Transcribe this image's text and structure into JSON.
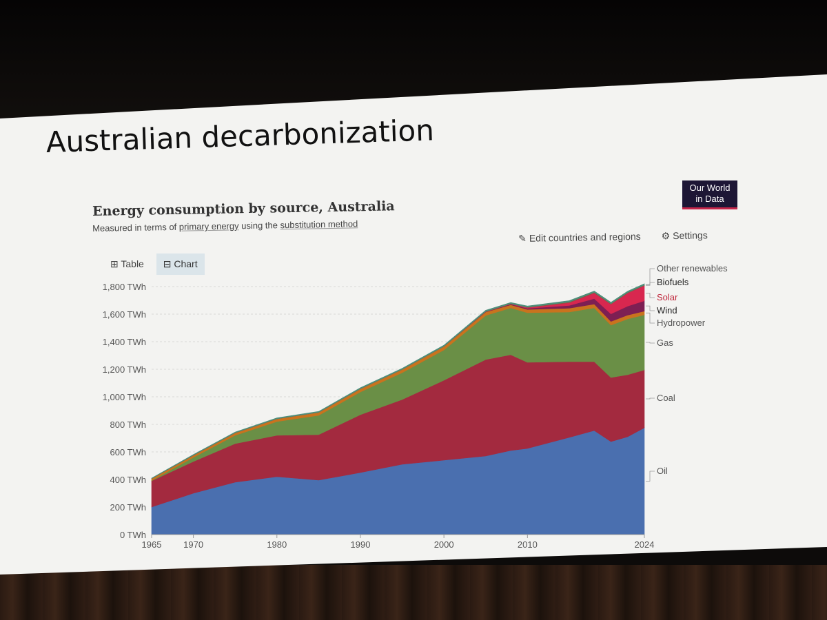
{
  "slide": {
    "title": "Australian decarbonization"
  },
  "logo": {
    "line1": "Our World",
    "line2": "in Data"
  },
  "header": {
    "title": "Energy consumption by source, Australia",
    "subtitle_prefix": "Measured in terms of",
    "subtitle_link1": "primary energy",
    "subtitle_mid": "using the",
    "subtitle_link2": "substitution method"
  },
  "toolbar": {
    "edit_label": "Edit countries and regions",
    "settings_label": "Settings",
    "edit_icon": "pencil-icon",
    "settings_icon": "gear-icon"
  },
  "tabs": [
    {
      "label": "Table",
      "icon": "table-icon",
      "active": false
    },
    {
      "label": "Chart",
      "icon": "chart-icon",
      "active": true
    }
  ],
  "chart_data": {
    "type": "area",
    "stacked": true,
    "title": "Energy consumption by source, Australia",
    "ylim": [
      0,
      1800
    ],
    "xlim": [
      1965,
      2024
    ],
    "y_ticks": [
      0,
      200,
      400,
      600,
      800,
      1000,
      1200,
      1400,
      1600,
      1800
    ],
    "y_tick_labels": [
      "0 TWh",
      "200 TWh",
      "400 TWh",
      "600 TWh",
      "800 TWh",
      "1,000 TWh",
      "1,200 TWh",
      "1,400 TWh",
      "1,600 TWh",
      "1,800 TWh"
    ],
    "x_ticks": [
      1965,
      1970,
      1980,
      1990,
      2000,
      2010,
      2024
    ],
    "x_tick_labels": [
      "1965",
      "1970",
      "1980",
      "1990",
      "2000",
      "2010",
      "2024"
    ],
    "grid": "horizontal",
    "legend": "right-labels",
    "x": [
      1965,
      1970,
      1975,
      1980,
      1985,
      1990,
      1995,
      2000,
      2005,
      2008,
      2010,
      2015,
      2018,
      2020,
      2022,
      2024
    ],
    "series": [
      {
        "name": "Oil",
        "color": "#4a6faf",
        "values": [
          200,
          300,
          380,
          420,
          395,
          450,
          510,
          540,
          570,
          610,
          625,
          705,
          755,
          675,
          710,
          775
        ]
      },
      {
        "name": "Coal",
        "color": "#a32a3f",
        "values": [
          190,
          230,
          280,
          300,
          330,
          420,
          470,
          580,
          700,
          695,
          625,
          550,
          500,
          465,
          450,
          420
        ]
      },
      {
        "name": "Gas",
        "color": "#6a8f46",
        "values": [
          2,
          30,
          60,
          100,
          140,
          165,
          195,
          220,
          320,
          340,
          360,
          360,
          390,
          380,
          405,
          400
        ]
      },
      {
        "name": "Hydropower",
        "color": "#c9731e",
        "values": [
          14,
          16,
          18,
          20,
          22,
          23,
          24,
          26,
          25,
          23,
          24,
          28,
          28,
          27,
          28,
          27
        ]
      },
      {
        "name": "Wind",
        "color": "#7d1f53",
        "values": [
          0,
          0,
          0,
          0,
          0,
          0,
          0,
          0,
          2,
          4,
          8,
          20,
          40,
          55,
          65,
          75
        ]
      },
      {
        "name": "Solar",
        "color": "#d8274f",
        "values": [
          0,
          0,
          0,
          0,
          0,
          0,
          0,
          0,
          1,
          2,
          5,
          20,
          40,
          70,
          95,
          110
        ]
      },
      {
        "name": "Biofuels",
        "color": "#8a5540",
        "values": [
          0,
          0,
          0,
          0,
          0,
          0,
          0,
          0,
          1,
          2,
          3,
          5,
          5,
          4,
          4,
          4
        ]
      },
      {
        "name": "Other renewables",
        "color": "#4e8f7a",
        "values": [
          4,
          5,
          6,
          7,
          7,
          8,
          8,
          9,
          9,
          9,
          9,
          10,
          10,
          10,
          10,
          10
        ]
      }
    ]
  }
}
